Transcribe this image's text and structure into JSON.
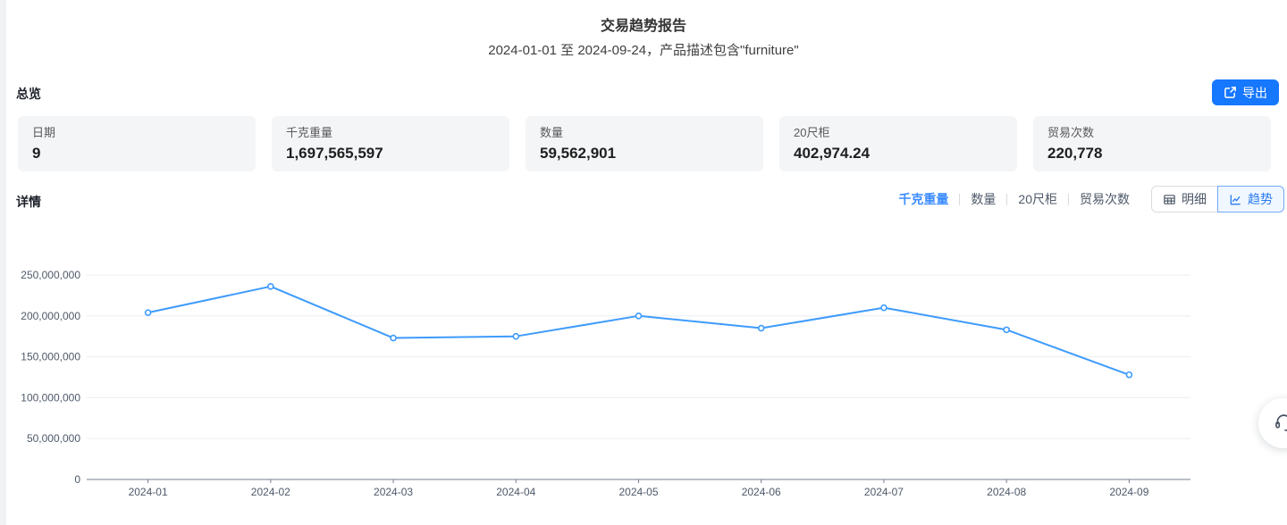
{
  "header": {
    "title": "交易趋势报告",
    "subtitle": "2024-01-01 至 2024-09-24，产品描述包含\"furniture\""
  },
  "overview": {
    "heading": "总览",
    "export_button": {
      "label": "导出",
      "icon": "export-icon",
      "color": "#1677ff"
    },
    "cards": [
      {
        "label": "日期",
        "value": "9"
      },
      {
        "label": "千克重量",
        "value": "1,697,565,597"
      },
      {
        "label": "数量",
        "value": "59,562,901"
      },
      {
        "label": "20尺柜",
        "value": "402,974.24"
      },
      {
        "label": "贸易次数",
        "value": "220,778"
      }
    ]
  },
  "details": {
    "heading": "详情",
    "metric_tabs": [
      {
        "label": "千克重量",
        "active": true
      },
      {
        "label": "数量",
        "active": false
      },
      {
        "label": "20尺柜",
        "active": false
      },
      {
        "label": "贸易次数",
        "active": false
      }
    ],
    "view_toggle": [
      {
        "label": "明细",
        "icon": "table-icon",
        "active": false
      },
      {
        "label": "趋势",
        "icon": "trend-icon",
        "active": true
      }
    ]
  },
  "chart_data": {
    "type": "line",
    "title": "",
    "xlabel": "",
    "ylabel": "",
    "x": [
      "2024-01",
      "2024-02",
      "2024-03",
      "2024-04",
      "2024-05",
      "2024-06",
      "2024-07",
      "2024-08",
      "2024-09"
    ],
    "series": [
      {
        "name": "千克重量",
        "values": [
          204000000,
          236000000,
          173000000,
          175000000,
          200000000,
          185000000,
          210000000,
          183000000,
          128000000
        ]
      }
    ],
    "ylim": [
      0,
      250000000
    ],
    "yticks": [
      0,
      50000000,
      100000000,
      150000000,
      200000000,
      250000000
    ],
    "grid": true,
    "legend_position": "none",
    "line_color": "#3e9bfd",
    "grid_color": "#ebedf0",
    "axis_color": "#767e8b",
    "label_color": "#4e5969"
  },
  "floating": {
    "assistant_icon": "headset-icon"
  }
}
